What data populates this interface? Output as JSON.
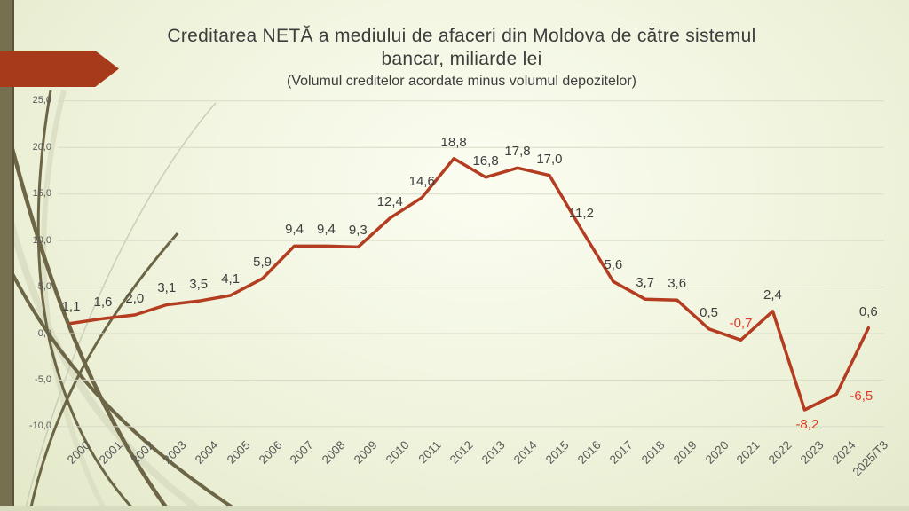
{
  "slide": {
    "title_line1": "Creditarea NETĂ a mediului de afaceri din Moldova de către sistemul",
    "title_line2": "bancar, miliarde lei",
    "subtitle": "(Volumul creditelor acordate minus volumul depozitelor)"
  },
  "theme": {
    "background_center": "#FBFDF1",
    "background_edge": "#DDE3C2",
    "left_bar_color": "#767050",
    "accent_arrow_color": "#A83A1C",
    "decor_dark_curve_color": "#6C6647",
    "decor_light_curve_color": "#D9DEC2",
    "gridline_color": "#D8DBC6",
    "axis_text_color": "#5A5A5A",
    "title_text_color": "#3D3D3D"
  },
  "chart_data": {
    "type": "line",
    "title": "Creditarea NETĂ a mediului de afaceri din Moldova de către sistemul bancar, miliarde lei",
    "subtitle": "(Volumul creditelor acordate minus volumul depozitelor)",
    "categories": [
      "2000",
      "2001",
      "2002",
      "2003",
      "2004",
      "2005",
      "2006",
      "2007",
      "2008",
      "2009",
      "2010",
      "2011",
      "2012",
      "2013",
      "2014",
      "2015",
      "2016",
      "2017",
      "2018",
      "2019",
      "2020",
      "2021",
      "2022",
      "2023",
      "2024",
      "2025/T3"
    ],
    "values": [
      1.1,
      1.6,
      2.0,
      3.1,
      3.5,
      4.1,
      5.9,
      9.4,
      9.4,
      9.3,
      12.4,
      14.6,
      18.8,
      16.8,
      17.8,
      17.0,
      11.2,
      5.6,
      3.7,
      3.6,
      0.5,
      -0.7,
      2.4,
      -8.2,
      -6.5,
      0.6
    ],
    "point_labels": [
      "1,1",
      "1,6",
      "2,0",
      "3,1",
      "3,5",
      "4,1",
      "5,9",
      "9,4",
      "9,4",
      "9,3",
      "12,4",
      "14,6",
      "18,8",
      "16,8",
      "17,8",
      "17,0",
      "11,2",
      "5,6",
      "3,7",
      "3,6",
      "0,5",
      "-0,7",
      "2,4",
      "-8,2",
      "-6,5",
      "0,6"
    ],
    "ytick_labels": [
      "25,0",
      "20,0",
      "15,0",
      "10,0",
      "5,0",
      "0,0",
      "-5,0",
      "-10,0"
    ],
    "ytick_values": [
      25,
      20,
      15,
      10,
      5,
      0,
      -5,
      -10
    ],
    "ylim": [
      -10,
      25
    ],
    "grid": true,
    "legend": "none",
    "xlabel": "",
    "ylabel": "",
    "line_color": "#B43C20",
    "line_width": 3.5,
    "point_label_color": "#3F3F3F",
    "negative_point_label_color": "#E23A28",
    "special_label_placements": [
      {
        "index": 23,
        "placement": "below"
      },
      {
        "index": 24,
        "placement": "right"
      }
    ]
  }
}
